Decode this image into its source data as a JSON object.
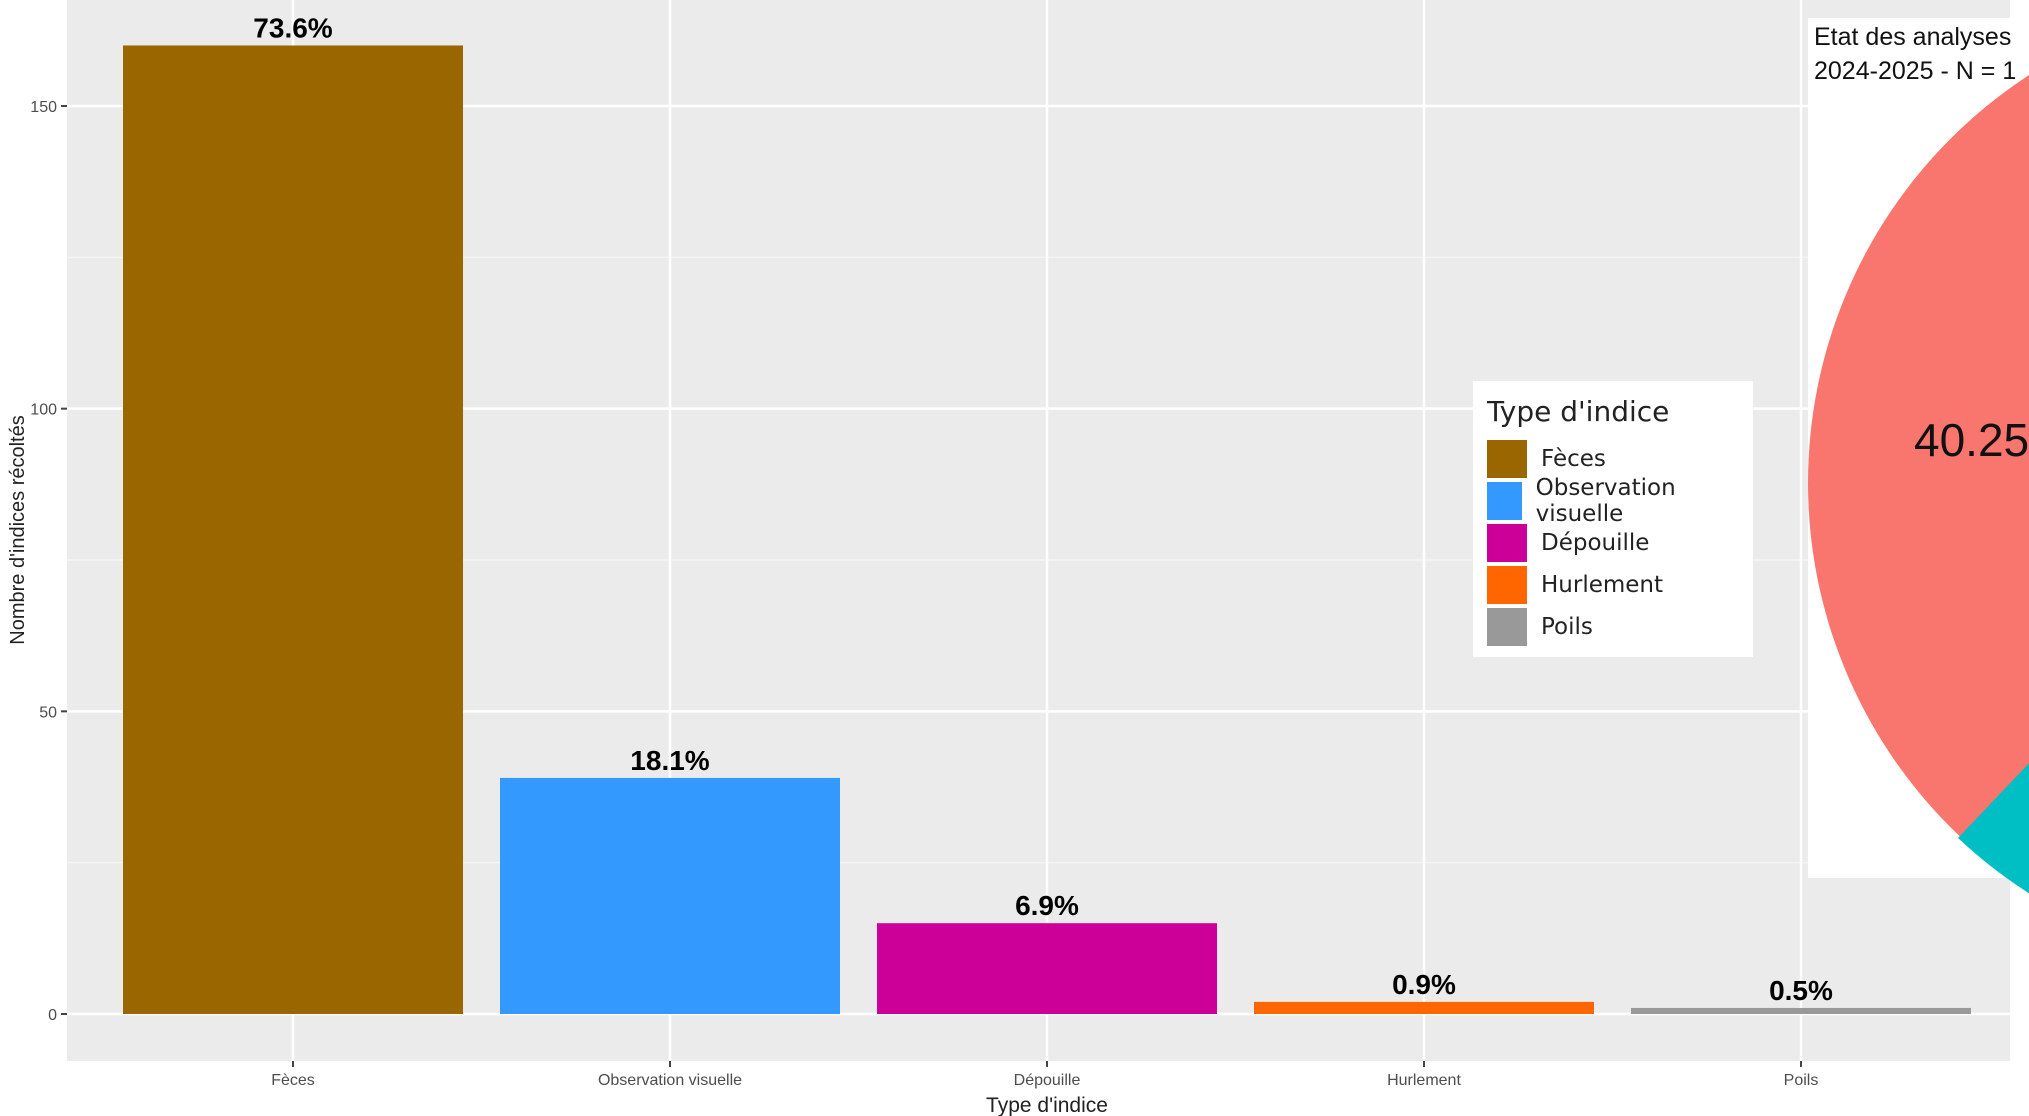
{
  "chart_data": {
    "type": "bar",
    "xlabel": "Type d'indice",
    "ylabel": "Nombre d'indices récoltés",
    "ylim": [
      -12,
      167
    ],
    "yticks": [
      0,
      50,
      100,
      150
    ],
    "categories": [
      "Fèces",
      "Observation visuelle",
      "Dépouille",
      "Hurlement",
      "Poils"
    ],
    "values": [
      160,
      39,
      15,
      2,
      1
    ],
    "percent_labels": [
      "73.6%",
      "18.1%",
      "6.9%",
      "0.9%",
      "0.5%"
    ],
    "colors": [
      "#996600",
      "#3399ff",
      "#cc0099",
      "#ff6600",
      "#999999"
    ],
    "grid": true,
    "legend": {
      "title": "Type d'indice",
      "placement": "right",
      "entries": [
        "Fèces",
        "Observation visuelle",
        "Dépouille",
        "Hurlement",
        "Poils"
      ]
    }
  },
  "inset": {
    "title_line1": "Etat des analyses",
    "title_line2": "2024-2025 - N = 1",
    "type": "pie",
    "visible_label": "40.25",
    "colors": [
      "#f8766d",
      "#00bfc4"
    ]
  }
}
